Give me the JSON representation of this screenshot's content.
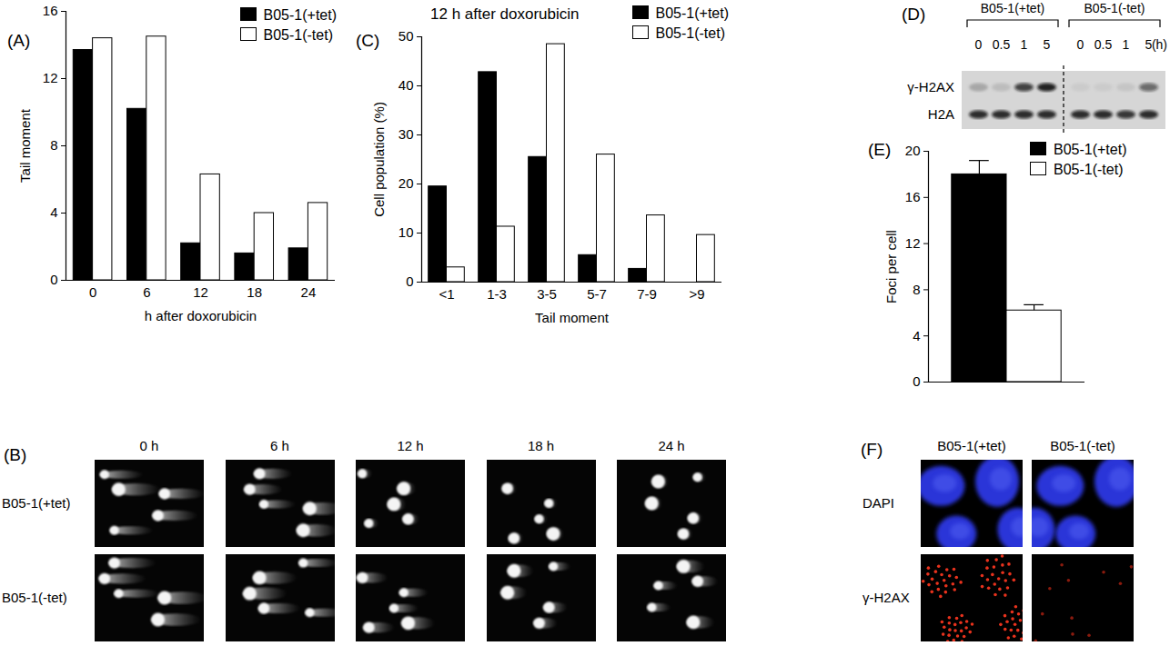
{
  "chart_data": [
    {
      "type": "bar",
      "panel": "(A)",
      "xlabel": "h after doxorubicin",
      "ylabel": "Tail moment",
      "categories": [
        "0",
        "6",
        "12",
        "18",
        "24"
      ],
      "series": [
        {
          "name": "B05-1(+tet)",
          "color": "#000000",
          "values": [
            13.7,
            10.2,
            2.2,
            1.6,
            1.9
          ]
        },
        {
          "name": "B05-1(-tet)",
          "color": "#ffffff",
          "values": [
            14.4,
            14.5,
            6.3,
            4.0,
            4.6
          ]
        }
      ],
      "ylim": [
        0,
        16
      ],
      "yticks": [
        0,
        4,
        8,
        12,
        16
      ],
      "legend": "top-right"
    },
    {
      "type": "bar",
      "panel": "(C)",
      "title": "12 h after doxorubicin",
      "xlabel": "Tail moment",
      "ylabel": "Cell population (%)",
      "categories": [
        "<1",
        "1-3",
        "3-5",
        "5-7",
        "7-9",
        ">9"
      ],
      "series": [
        {
          "name": "B05-1(+tet)",
          "color": "#000000",
          "values": [
            19.5,
            42.8,
            25.5,
            5.5,
            2.7,
            0
          ]
        },
        {
          "name": "B05-1(-tet)",
          "color": "#ffffff",
          "values": [
            3.0,
            11.3,
            48.5,
            26.0,
            13.6,
            9.6
          ]
        }
      ],
      "ylim": [
        0,
        50
      ],
      "yticks": [
        0,
        10,
        20,
        30,
        40,
        50
      ],
      "legend": "top-right"
    },
    {
      "type": "bar",
      "panel": "(E)",
      "ylabel": "Foci per cell",
      "categories": [
        null
      ],
      "series": [
        {
          "name": "B05-1(+tet)",
          "color": "#000000",
          "values": [
            18.0
          ],
          "error": [
            1.2
          ]
        },
        {
          "name": "B05-1(-tet)",
          "color": "#ffffff",
          "values": [
            6.2
          ],
          "error": [
            0.5
          ]
        }
      ],
      "ylim": [
        0,
        20
      ],
      "yticks": [
        0,
        4,
        8,
        12,
        16,
        20
      ],
      "legend": "top-right",
      "tick_labels": "y"
    }
  ],
  "images": {
    "B": {
      "panel": "(B)",
      "columns": [
        "0 h",
        "6 h",
        "12 h",
        "18 h",
        "24 h"
      ],
      "rows": [
        "B05-1(+tet)",
        "B05-1(-tet)"
      ]
    },
    "D": {
      "panel": "(D)",
      "groups": [
        {
          "name": "B05-1(+tet)",
          "times": [
            "0",
            "0.5",
            "1",
            "5"
          ]
        },
        {
          "name": "B05-1(-tet)",
          "times": [
            "0",
            "0.5",
            "1",
            "5"
          ]
        }
      ],
      "unit": "(h)",
      "rows": [
        "γ-H2AX",
        "H2A"
      ]
    },
    "F": {
      "panel": "(F)",
      "columns": [
        "B05-1(+tet)",
        "B05-1(-tet)"
      ],
      "rows": [
        "DAPI",
        "γ-H2AX"
      ]
    }
  }
}
